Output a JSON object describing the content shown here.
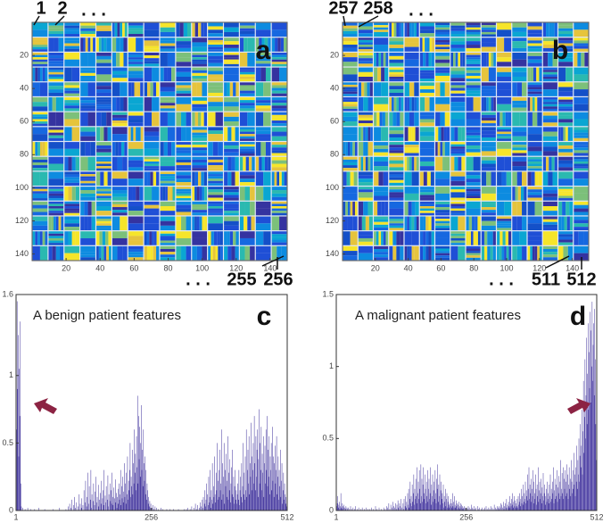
{
  "chart_data": [
    {
      "type": "heatmap",
      "panel_label": "a",
      "annotations": [
        "1",
        "2",
        ". . .",
        ". . .",
        "255",
        "256"
      ],
      "xlim": [
        0,
        150
      ],
      "ylim": [
        0,
        144
      ],
      "xticks": [
        20,
        40,
        60,
        80,
        100,
        120,
        140
      ],
      "yticks": [
        20,
        40,
        60,
        80,
        100,
        120,
        140
      ]
    },
    {
      "type": "heatmap",
      "panel_label": "b",
      "annotations": [
        "257",
        "258",
        ". . .",
        ". . .",
        "511",
        "512"
      ],
      "xlim": [
        0,
        150
      ],
      "ylim": [
        0,
        144
      ],
      "xticks": [
        20,
        40,
        60,
        80,
        100,
        120,
        140
      ],
      "yticks": [
        20,
        40,
        60,
        80,
        100,
        120,
        140
      ]
    },
    {
      "type": "bar",
      "title": "A benign patient features",
      "panel_label": "c",
      "color": "#3b2d9a",
      "xlim": [
        1,
        512
      ],
      "xticks": [
        1,
        256,
        512
      ],
      "ylim": [
        0,
        1.6
      ],
      "yticks": [
        0,
        0.5,
        1,
        1.6
      ],
      "values": [
        1.35,
        0.6,
        1.55,
        0.9,
        1.3,
        0.4,
        1.05,
        0.7,
        1.4,
        0.2,
        0.03,
        0,
        0,
        0.02,
        0,
        0,
        0,
        0.01,
        0,
        0,
        0,
        0,
        0.02,
        0,
        0,
        0,
        0,
        0,
        0.01,
        0,
        0,
        0,
        0,
        0,
        0,
        0.01,
        0,
        0,
        0,
        0,
        0,
        0,
        0,
        0.02,
        0,
        0,
        0,
        0,
        0,
        0,
        0,
        0,
        0,
        0,
        0.01,
        0,
        0,
        0,
        0,
        0,
        0,
        0,
        0,
        0,
        0,
        0,
        0,
        0,
        0,
        0,
        0.01,
        0,
        0,
        0,
        0,
        0,
        0,
        0,
        0,
        0,
        0,
        0,
        0.02,
        0,
        0,
        0,
        0,
        0,
        0,
        0,
        0,
        0,
        0,
        0,
        0.01,
        0,
        0,
        0,
        0.03,
        0,
        0,
        0.05,
        0,
        0.02,
        0,
        0.08,
        0,
        0,
        0.04,
        0,
        0.1,
        0,
        0.02,
        0,
        0.06,
        0,
        0,
        0.03,
        0,
        0.12,
        0,
        0.05,
        0,
        0.02,
        0.09,
        0,
        0.04,
        0,
        0.15,
        0,
        0.06,
        0.22,
        0,
        0.03,
        0.1,
        0.28,
        0,
        0.05,
        0.18,
        0,
        0.08,
        0.3,
        0.02,
        0.12,
        0,
        0.07,
        0.2,
        0,
        0.04,
        0.14,
        0.25,
        0,
        0.06,
        0.1,
        0,
        0.19,
        0.03,
        0.08,
        0,
        0.13,
        0.05,
        0.22,
        0,
        0.09,
        0.15,
        0.04,
        0.3,
        0,
        0.11,
        0.06,
        0.18,
        0,
        0.08,
        0.26,
        0.03,
        0.12,
        0,
        0.2,
        0.07,
        0.15,
        0.05,
        0.28,
        0.1,
        0.04,
        0.17,
        0,
        0.09,
        0.23,
        0.06,
        0.13,
        0.02,
        0.1,
        0.05,
        0.16,
        0.2,
        0.08,
        0.12,
        0.3,
        0.04,
        0.18,
        0.09,
        0.25,
        0.06,
        0.14,
        0.35,
        0.1,
        0.2,
        0.05,
        0.28,
        0.12,
        0.4,
        0.08,
        0.22,
        0.15,
        0.3,
        0.5,
        0.1,
        0.25,
        0.18,
        0.45,
        0.12,
        0.35,
        0.2,
        0.6,
        0.28,
        0.42,
        0.15,
        0.55,
        0.32,
        0.85,
        0.2,
        0.7,
        0.38,
        0.62,
        0.25,
        0.5,
        0.78,
        0.3,
        0.45,
        0.18,
        0.6,
        0.35,
        0.22,
        0.4,
        0.12,
        0.3,
        0.08,
        0.2,
        0.15,
        0.05,
        0.1,
        0.03,
        0.07,
        0.02,
        0.05,
        0,
        0.02,
        0,
        0.04,
        0,
        0.01,
        0,
        0.03,
        0,
        0,
        0.02,
        0,
        0,
        0.01,
        0,
        0,
        0,
        0,
        0.02,
        0,
        0,
        0,
        0.01,
        0,
        0,
        0,
        0,
        0,
        0,
        0.01,
        0,
        0,
        0,
        0,
        0,
        0.01,
        0,
        0,
        0,
        0,
        0,
        0,
        0.01,
        0,
        0,
        0,
        0,
        0,
        0,
        0,
        0,
        0.01,
        0,
        0,
        0,
        0,
        0,
        0,
        0,
        0,
        0,
        0,
        0.01,
        0,
        0,
        0,
        0.01,
        0,
        0,
        0.02,
        0,
        0,
        0,
        0.01,
        0,
        0,
        0.03,
        0,
        0,
        0,
        0.02,
        0,
        0,
        0.05,
        0,
        0.01,
        0,
        0.04,
        0,
        0,
        0.02,
        0,
        0.06,
        0,
        0.03,
        0,
        0.08,
        0.02,
        0.1,
        0,
        0.05,
        0.15,
        0.03,
        0.08,
        0.2,
        0,
        0.12,
        0.04,
        0.25,
        0.06,
        0.1,
        0.3,
        0.02,
        0.15,
        0.08,
        0.35,
        0.05,
        0.18,
        0.1,
        0.4,
        0.12,
        0.06,
        0.28,
        0.15,
        0.5,
        0.08,
        0.22,
        0.3,
        0.1,
        0.45,
        0.15,
        0.2,
        0.6,
        0.08,
        0.35,
        0.12,
        0.25,
        0.5,
        0.05,
        0.3,
        0.18,
        0.42,
        0.1,
        0.22,
        0.55,
        0.08,
        0.28,
        0.15,
        0.38,
        0.06,
        0.2,
        0.32,
        0.12,
        0.45,
        0.1,
        0.25,
        0.05,
        0.18,
        0.3,
        0.08,
        0.15,
        0.05,
        0.12,
        0.2,
        0.08,
        0.3,
        0.04,
        0.15,
        0.25,
        0.1,
        0.35,
        0.06,
        0.18,
        0.5,
        0.12,
        0.28,
        0.08,
        0.4,
        0.15,
        0.6,
        0.1,
        0.3,
        0.45,
        0.2,
        0.55,
        0.12,
        0.35,
        0.25,
        0.65,
        0.15,
        0.4,
        0.3,
        0.5,
        0.2,
        0.7,
        0.35,
        0.15,
        0.55,
        0.25,
        0.45,
        0.6,
        0.1,
        0.38,
        0.75,
        0.2,
        0.5,
        0.3,
        0.62,
        0.15,
        0.42,
        0.28,
        0.55,
        0.1,
        0.35,
        0.48,
        0.2,
        0.6,
        0.3,
        0.7,
        0.18,
        0.45,
        0.25,
        0.55,
        0.12,
        0.4,
        0.3,
        0.5,
        0.15,
        0.62,
        0.22,
        0.4,
        0.1,
        0.35,
        0.48,
        0.2,
        0.3,
        0.55,
        0.12,
        0.25,
        0.4,
        0.08,
        0.3,
        0.18,
        0.45,
        0.1,
        0.22,
        0.35,
        0.05,
        0.15,
        0.28,
        0.08,
        0.2,
        0.12,
        0.05,
        0.1,
        0.03,
        0.02
      ]
    },
    {
      "type": "bar",
      "title": "A malignant patient features",
      "panel_label": "d",
      "color": "#3b2d9a",
      "xlim": [
        1,
        512
      ],
      "xticks": [
        1,
        256,
        512
      ],
      "ylim": [
        0,
        1.5
      ],
      "yticks": [
        0,
        0.5,
        1,
        1.5
      ],
      "values": [
        0.08,
        0.03,
        0.05,
        0.1,
        0.02,
        0.04,
        0.06,
        0.01,
        0.03,
        0.12,
        0.02,
        0.05,
        0.01,
        0.03,
        0.02,
        0.04,
        0,
        0.02,
        0.01,
        0.03,
        0,
        0.02,
        0.01,
        0,
        0.02,
        0,
        0.01,
        0,
        0.03,
        0,
        0.01,
        0,
        0,
        0.02,
        0,
        0,
        0.01,
        0,
        0.03,
        0,
        0,
        0.01,
        0,
        0,
        0.02,
        0,
        0,
        0,
        0.01,
        0,
        0,
        0.02,
        0,
        0,
        0,
        0.01,
        0,
        0,
        0,
        0.02,
        0,
        0,
        0.01,
        0,
        0,
        0,
        0.01,
        0,
        0,
        0.02,
        0,
        0,
        0,
        0.01,
        0,
        0,
        0,
        0.03,
        0,
        0,
        0.01,
        0,
        0,
        0,
        0.02,
        0,
        0,
        0,
        0.01,
        0,
        0,
        0,
        0,
        0.02,
        0,
        0,
        0.01,
        0,
        0,
        0.03,
        0,
        0.02,
        0,
        0.05,
        0,
        0.01,
        0,
        0.04,
        0,
        0.02,
        0,
        0.06,
        0,
        0.03,
        0,
        0.02,
        0.05,
        0,
        0.01,
        0.04,
        0,
        0.07,
        0.02,
        0,
        0.05,
        0.03,
        0,
        0.08,
        0,
        0.02,
        0,
        0.05,
        0.01,
        0.08,
        0,
        0.03,
        0.1,
        0.02,
        0.06,
        0,
        0.12,
        0.04,
        0.15,
        0.02,
        0.08,
        0.2,
        0.05,
        0.1,
        0.03,
        0.18,
        0.06,
        0.12,
        0.25,
        0.04,
        0.15,
        0.08,
        0.22,
        0.1,
        0.3,
        0.05,
        0.12,
        0.2,
        0.08,
        0.28,
        0.15,
        0.05,
        0.32,
        0.1,
        0.22,
        0.06,
        0.18,
        0.3,
        0.12,
        0.08,
        0.25,
        0.15,
        0.05,
        0.2,
        0.1,
        0.28,
        0.06,
        0.15,
        0.22,
        0.08,
        0.12,
        0.3,
        0.04,
        0.18,
        0.1,
        0.25,
        0.06,
        0.14,
        0.2,
        0.08,
        0.28,
        0.12,
        0.05,
        0.22,
        0.15,
        0.32,
        0.06,
        0.18,
        0.1,
        0.25,
        0.04,
        0.14,
        0.2,
        0.08,
        0.12,
        0.05,
        0.18,
        0.02,
        0.1,
        0.06,
        0.15,
        0.03,
        0.08,
        0.12,
        0.02,
        0.06,
        0.1,
        0.04,
        0.02,
        0.05,
        0.03,
        0.08,
        0.02,
        0.05,
        0.12,
        0.03,
        0.06,
        0.02,
        0.1,
        0.04,
        0.02,
        0.07,
        0.03,
        0.05,
        0.01,
        0.04,
        0.02,
        0.06,
        0.01,
        0.03,
        0.05,
        0.02,
        0.04,
        0.01,
        0.03,
        0.02,
        0.01,
        0.03,
        0,
        0.02,
        0.01,
        0,
        0.02,
        0,
        0.01,
        0.03,
        0,
        0.02,
        0,
        0.01,
        0,
        0.04,
        0,
        0.02,
        0.01,
        0,
        0.03,
        0,
        0.01,
        0,
        0.02,
        0,
        0,
        0.03,
        0,
        0.01,
        0,
        0.02,
        0,
        0,
        0.01,
        0,
        0.02,
        0,
        0,
        0.01,
        0,
        0.02,
        0,
        0,
        0.03,
        0,
        0.01,
        0,
        0,
        0.02,
        0,
        0.01,
        0,
        0.03,
        0,
        0,
        0.02,
        0,
        0.01,
        0,
        0.04,
        0,
        0.02,
        0,
        0.01,
        0,
        0.03,
        0,
        0.02,
        0.01,
        0.03,
        0,
        0.02,
        0.05,
        0,
        0.04,
        0.02,
        0,
        0.06,
        0.01,
        0.03,
        0,
        0.05,
        0.02,
        0.08,
        0,
        0.04,
        0.02,
        0.06,
        0.03,
        0.1,
        0.02,
        0.05,
        0.03,
        0.08,
        0.04,
        0.12,
        0.02,
        0.06,
        0.1,
        0.03,
        0.07,
        0.02,
        0.05,
        0.03,
        0.08,
        0.02,
        0.1,
        0.04,
        0.06,
        0.12,
        0.03,
        0.08,
        0.15,
        0.05,
        0.1,
        0.04,
        0.18,
        0.06,
        0.12,
        0.08,
        0.2,
        0.05,
        0.14,
        0.1,
        0.25,
        0.07,
        0.15,
        0.3,
        0.08,
        0.18,
        0.12,
        0.22,
        0.06,
        0.15,
        0.1,
        0.28,
        0.05,
        0.2,
        0.12,
        0.08,
        0.25,
        0.15,
        0.04,
        0.18,
        0.1,
        0.3,
        0.06,
        0.14,
        0.2,
        0.08,
        0.12,
        0.22,
        0.05,
        0.16,
        0.1,
        0.26,
        0.07,
        0.12,
        0.18,
        0.04,
        0.1,
        0.15,
        0.06,
        0.2,
        0.08,
        0.12,
        0.05,
        0.18,
        0.1,
        0.25,
        0.06,
        0.15,
        0.08,
        0.2,
        0.12,
        0.3,
        0.05,
        0.14,
        0.22,
        0.08,
        0.18,
        0.1,
        0.28,
        0.06,
        0.16,
        0.12,
        0.24,
        0.08,
        0.2,
        0.35,
        0.1,
        0.15,
        0.26,
        0.12,
        0.3,
        0.08,
        0.22,
        0.15,
        0.28,
        0.1,
        0.2,
        0.32,
        0.12,
        0.25,
        0.08,
        0.18,
        0.3,
        0.15,
        0.22,
        0.1,
        0.35,
        0.2,
        0.12,
        0.28,
        0.15,
        0.4,
        0.18,
        0.25,
        0.1,
        0.3,
        0.2,
        0.45,
        0.15,
        0.35,
        0.25,
        0.5,
        0.2,
        0.38,
        0.6,
        0.3,
        0.45,
        0.7,
        0.25,
        0.55,
        0.9,
        0.4,
        0.65,
        1.05,
        0.5,
        0.8,
        1.2,
        0.6,
        0.95,
        1.3,
        0.7,
        1.1,
        0.85,
        1.38,
        0.75,
        1.25,
        1.0,
        1.45,
        0.9,
        1.15,
        1.3,
        0.8,
        1.4,
        1.05,
        0.6,
        0.35,
        0.2
      ]
    }
  ]
}
